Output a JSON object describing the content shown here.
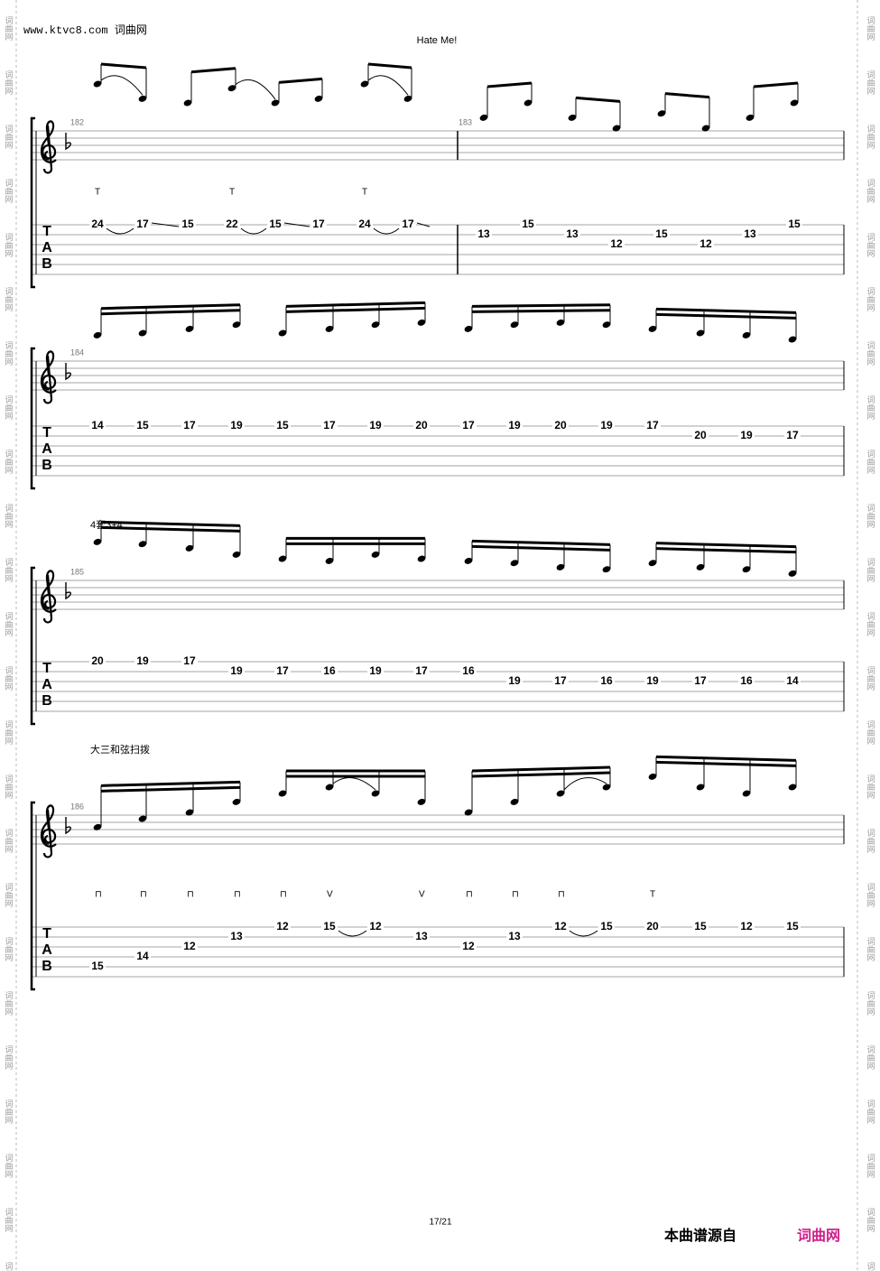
{
  "header": {
    "site": "www.ktvc8.com 词曲网",
    "title": "Hate Me!"
  },
  "watermark": "词曲网",
  "tab_clef": [
    "T",
    "A",
    "B"
  ],
  "systems": [
    {
      "measures": [
        "182",
        "183"
      ],
      "techniques": [
        "T",
        "T",
        "T"
      ],
      "frets": [
        "24",
        "17",
        "15",
        "22",
        "15",
        "17",
        "24",
        "17",
        "13",
        "15",
        "13",
        "12",
        "15",
        "12",
        "13",
        "15"
      ]
    },
    {
      "measures": [
        "184"
      ],
      "techniques": [],
      "frets": [
        "14",
        "15",
        "17",
        "19",
        "15",
        "17",
        "19",
        "20",
        "17",
        "19",
        "20",
        "19",
        "17",
        "20",
        "19",
        "17"
      ]
    },
    {
      "measures": [
        "185"
      ],
      "annotation": "4套3+4",
      "techniques": [],
      "frets": [
        "20",
        "19",
        "17",
        "19",
        "17",
        "16",
        "19",
        "17",
        "16",
        "19",
        "17",
        "16",
        "19",
        "17",
        "16",
        "14"
      ]
    },
    {
      "measures": [
        "186"
      ],
      "annotation": "大三和弦扫拨",
      "techniques": [
        "⊓",
        "⊓",
        "⊓",
        "⊓",
        "⊓",
        "V",
        "V",
        "⊓",
        "⊓",
        "⊓",
        "T"
      ],
      "frets": [
        "15",
        "14",
        "12",
        "13",
        "12",
        "15",
        "12",
        "13",
        "12",
        "13",
        "12",
        "15",
        "20",
        "15",
        "12",
        "15"
      ]
    }
  ],
  "footer": {
    "page": "17/21",
    "source": "本曲谱源自",
    "brand": "词曲网"
  }
}
